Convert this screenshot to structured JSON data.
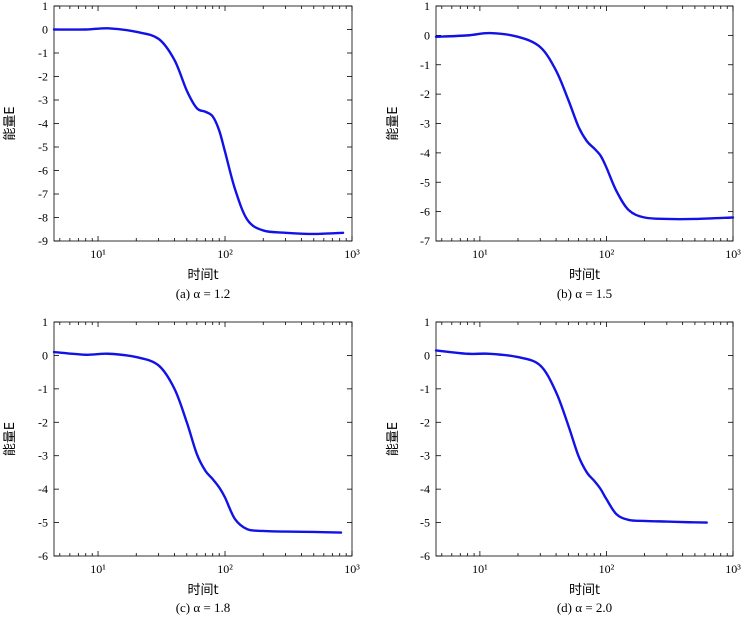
{
  "chart_data": [
    {
      "type": "line",
      "caption": "(a) α = 1.2",
      "xlabel": "时间t",
      "ylabel": "能量E",
      "xscale": "log",
      "xlim": [
        4.5,
        1000
      ],
      "ylim": [
        -9,
        1
      ],
      "yticks": [
        1,
        0,
        -1,
        -2,
        -3,
        -4,
        -5,
        -6,
        -7,
        -8,
        -9
      ],
      "xticks": [
        {
          "value": 10,
          "label": "10¹"
        },
        {
          "value": 100,
          "label": "10²"
        },
        {
          "value": 1000,
          "label": "10³"
        }
      ],
      "color": "#1212e6",
      "series": [
        {
          "name": "E(t)",
          "x": [
            4.5,
            8,
            12,
            20,
            30,
            40,
            50,
            60,
            70,
            80,
            90,
            100,
            120,
            150,
            200,
            300,
            500,
            850
          ],
          "y": [
            0.0,
            0.0,
            0.05,
            -0.1,
            -0.4,
            -1.3,
            -2.6,
            -3.35,
            -3.5,
            -3.7,
            -4.3,
            -5.2,
            -6.8,
            -8.1,
            -8.55,
            -8.65,
            -8.7,
            -8.65
          ]
        }
      ]
    },
    {
      "type": "line",
      "caption": "(b) α = 1.5",
      "xlabel": "时间t",
      "ylabel": "能量E",
      "xscale": "log",
      "xlim": [
        4.5,
        1000
      ],
      "ylim": [
        -7,
        1
      ],
      "yticks": [
        1,
        0,
        -1,
        -2,
        -3,
        -4,
        -5,
        -6,
        -7
      ],
      "xticks": [
        {
          "value": 10,
          "label": "10¹"
        },
        {
          "value": 100,
          "label": "10²"
        },
        {
          "value": 1000,
          "label": "10³"
        }
      ],
      "color": "#1212e6",
      "series": [
        {
          "name": "E(t)",
          "x": [
            4.5,
            8,
            12,
            20,
            30,
            40,
            50,
            60,
            70,
            80,
            90,
            100,
            120,
            150,
            200,
            300,
            500,
            1000
          ],
          "y": [
            -0.05,
            0.0,
            0.08,
            -0.05,
            -0.4,
            -1.2,
            -2.2,
            -3.1,
            -3.6,
            -3.85,
            -4.1,
            -4.5,
            -5.3,
            -5.95,
            -6.2,
            -6.25,
            -6.25,
            -6.2
          ]
        }
      ]
    },
    {
      "type": "line",
      "caption": "(c) α = 1.8",
      "xlabel": "时间t",
      "ylabel": "能量E",
      "xscale": "log",
      "xlim": [
        4.5,
        1000
      ],
      "ylim": [
        -6,
        1
      ],
      "yticks": [
        1,
        0,
        -1,
        -2,
        -3,
        -4,
        -5,
        -6
      ],
      "xticks": [
        {
          "value": 10,
          "label": "10¹"
        },
        {
          "value": 100,
          "label": "10²"
        },
        {
          "value": 1000,
          "label": "10³"
        }
      ],
      "color": "#1212e6",
      "series": [
        {
          "name": "E(t)",
          "x": [
            4.5,
            8,
            12,
            20,
            30,
            40,
            50,
            60,
            70,
            80,
            90,
            100,
            120,
            150,
            200,
            300,
            500,
            820
          ],
          "y": [
            0.1,
            0.02,
            0.05,
            -0.05,
            -0.3,
            -1.0,
            -2.0,
            -2.95,
            -3.45,
            -3.7,
            -3.95,
            -4.25,
            -4.9,
            -5.2,
            -5.25,
            -5.27,
            -5.28,
            -5.3
          ]
        }
      ]
    },
    {
      "type": "line",
      "caption": "(d) α = 2.0",
      "xlabel": "时间t",
      "ylabel": "能量E",
      "xscale": "log",
      "xlim": [
        4.5,
        1000
      ],
      "ylim": [
        -6,
        1
      ],
      "yticks": [
        1,
        0,
        -1,
        -2,
        -3,
        -4,
        -5,
        -6
      ],
      "xticks": [
        {
          "value": 10,
          "label": "10¹"
        },
        {
          "value": 100,
          "label": "10²"
        },
        {
          "value": 1000,
          "label": "10³"
        }
      ],
      "color": "#1212e6",
      "series": [
        {
          "name": "E(t)",
          "x": [
            4.5,
            8,
            12,
            20,
            30,
            40,
            50,
            60,
            70,
            80,
            90,
            100,
            120,
            150,
            200,
            300,
            450,
            620
          ],
          "y": [
            0.15,
            0.05,
            0.05,
            -0.05,
            -0.3,
            -1.1,
            -2.1,
            -3.0,
            -3.5,
            -3.75,
            -4.0,
            -4.3,
            -4.75,
            -4.92,
            -4.95,
            -4.97,
            -4.99,
            -5.0
          ]
        }
      ]
    }
  ]
}
